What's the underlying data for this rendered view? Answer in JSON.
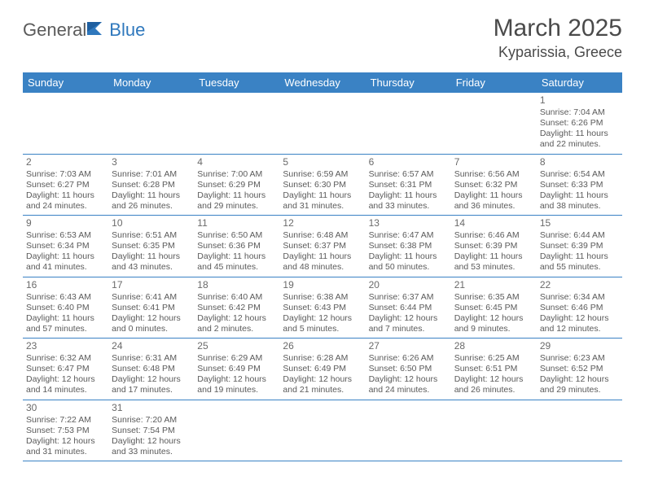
{
  "brand": {
    "part1": "General",
    "part2": "Blue"
  },
  "title": "March 2025",
  "location": "Kyparissia, Greece",
  "colors": {
    "header_bg": "#3a82c4",
    "header_text": "#ffffff",
    "rule": "#3a82c4",
    "body_text": "#5a5a5a",
    "brand_blue": "#2f78bd"
  },
  "weekdays": [
    "Sunday",
    "Monday",
    "Tuesday",
    "Wednesday",
    "Thursday",
    "Friday",
    "Saturday"
  ],
  "weeks": [
    [
      null,
      null,
      null,
      null,
      null,
      null,
      {
        "d": "1",
        "sunrise": "7:04 AM",
        "sunset": "6:26 PM",
        "dl1": "Daylight: 11 hours",
        "dl2": "and 22 minutes."
      }
    ],
    [
      {
        "d": "2",
        "sunrise": "7:03 AM",
        "sunset": "6:27 PM",
        "dl1": "Daylight: 11 hours",
        "dl2": "and 24 minutes."
      },
      {
        "d": "3",
        "sunrise": "7:01 AM",
        "sunset": "6:28 PM",
        "dl1": "Daylight: 11 hours",
        "dl2": "and 26 minutes."
      },
      {
        "d": "4",
        "sunrise": "7:00 AM",
        "sunset": "6:29 PM",
        "dl1": "Daylight: 11 hours",
        "dl2": "and 29 minutes."
      },
      {
        "d": "5",
        "sunrise": "6:59 AM",
        "sunset": "6:30 PM",
        "dl1": "Daylight: 11 hours",
        "dl2": "and 31 minutes."
      },
      {
        "d": "6",
        "sunrise": "6:57 AM",
        "sunset": "6:31 PM",
        "dl1": "Daylight: 11 hours",
        "dl2": "and 33 minutes."
      },
      {
        "d": "7",
        "sunrise": "6:56 AM",
        "sunset": "6:32 PM",
        "dl1": "Daylight: 11 hours",
        "dl2": "and 36 minutes."
      },
      {
        "d": "8",
        "sunrise": "6:54 AM",
        "sunset": "6:33 PM",
        "dl1": "Daylight: 11 hours",
        "dl2": "and 38 minutes."
      }
    ],
    [
      {
        "d": "9",
        "sunrise": "6:53 AM",
        "sunset": "6:34 PM",
        "dl1": "Daylight: 11 hours",
        "dl2": "and 41 minutes."
      },
      {
        "d": "10",
        "sunrise": "6:51 AM",
        "sunset": "6:35 PM",
        "dl1": "Daylight: 11 hours",
        "dl2": "and 43 minutes."
      },
      {
        "d": "11",
        "sunrise": "6:50 AM",
        "sunset": "6:36 PM",
        "dl1": "Daylight: 11 hours",
        "dl2": "and 45 minutes."
      },
      {
        "d": "12",
        "sunrise": "6:48 AM",
        "sunset": "6:37 PM",
        "dl1": "Daylight: 11 hours",
        "dl2": "and 48 minutes."
      },
      {
        "d": "13",
        "sunrise": "6:47 AM",
        "sunset": "6:38 PM",
        "dl1": "Daylight: 11 hours",
        "dl2": "and 50 minutes."
      },
      {
        "d": "14",
        "sunrise": "6:46 AM",
        "sunset": "6:39 PM",
        "dl1": "Daylight: 11 hours",
        "dl2": "and 53 minutes."
      },
      {
        "d": "15",
        "sunrise": "6:44 AM",
        "sunset": "6:39 PM",
        "dl1": "Daylight: 11 hours",
        "dl2": "and 55 minutes."
      }
    ],
    [
      {
        "d": "16",
        "sunrise": "6:43 AM",
        "sunset": "6:40 PM",
        "dl1": "Daylight: 11 hours",
        "dl2": "and 57 minutes."
      },
      {
        "d": "17",
        "sunrise": "6:41 AM",
        "sunset": "6:41 PM",
        "dl1": "Daylight: 12 hours",
        "dl2": "and 0 minutes."
      },
      {
        "d": "18",
        "sunrise": "6:40 AM",
        "sunset": "6:42 PM",
        "dl1": "Daylight: 12 hours",
        "dl2": "and 2 minutes."
      },
      {
        "d": "19",
        "sunrise": "6:38 AM",
        "sunset": "6:43 PM",
        "dl1": "Daylight: 12 hours",
        "dl2": "and 5 minutes."
      },
      {
        "d": "20",
        "sunrise": "6:37 AM",
        "sunset": "6:44 PM",
        "dl1": "Daylight: 12 hours",
        "dl2": "and 7 minutes."
      },
      {
        "d": "21",
        "sunrise": "6:35 AM",
        "sunset": "6:45 PM",
        "dl1": "Daylight: 12 hours",
        "dl2": "and 9 minutes."
      },
      {
        "d": "22",
        "sunrise": "6:34 AM",
        "sunset": "6:46 PM",
        "dl1": "Daylight: 12 hours",
        "dl2": "and 12 minutes."
      }
    ],
    [
      {
        "d": "23",
        "sunrise": "6:32 AM",
        "sunset": "6:47 PM",
        "dl1": "Daylight: 12 hours",
        "dl2": "and 14 minutes."
      },
      {
        "d": "24",
        "sunrise": "6:31 AM",
        "sunset": "6:48 PM",
        "dl1": "Daylight: 12 hours",
        "dl2": "and 17 minutes."
      },
      {
        "d": "25",
        "sunrise": "6:29 AM",
        "sunset": "6:49 PM",
        "dl1": "Daylight: 12 hours",
        "dl2": "and 19 minutes."
      },
      {
        "d": "26",
        "sunrise": "6:28 AM",
        "sunset": "6:49 PM",
        "dl1": "Daylight: 12 hours",
        "dl2": "and 21 minutes."
      },
      {
        "d": "27",
        "sunrise": "6:26 AM",
        "sunset": "6:50 PM",
        "dl1": "Daylight: 12 hours",
        "dl2": "and 24 minutes."
      },
      {
        "d": "28",
        "sunrise": "6:25 AM",
        "sunset": "6:51 PM",
        "dl1": "Daylight: 12 hours",
        "dl2": "and 26 minutes."
      },
      {
        "d": "29",
        "sunrise": "6:23 AM",
        "sunset": "6:52 PM",
        "dl1": "Daylight: 12 hours",
        "dl2": "and 29 minutes."
      }
    ],
    [
      {
        "d": "30",
        "sunrise": "7:22 AM",
        "sunset": "7:53 PM",
        "dl1": "Daylight: 12 hours",
        "dl2": "and 31 minutes."
      },
      {
        "d": "31",
        "sunrise": "7:20 AM",
        "sunset": "7:54 PM",
        "dl1": "Daylight: 12 hours",
        "dl2": "and 33 minutes."
      },
      null,
      null,
      null,
      null,
      null
    ]
  ],
  "labels": {
    "sunrise_prefix": "Sunrise: ",
    "sunset_prefix": "Sunset: "
  }
}
